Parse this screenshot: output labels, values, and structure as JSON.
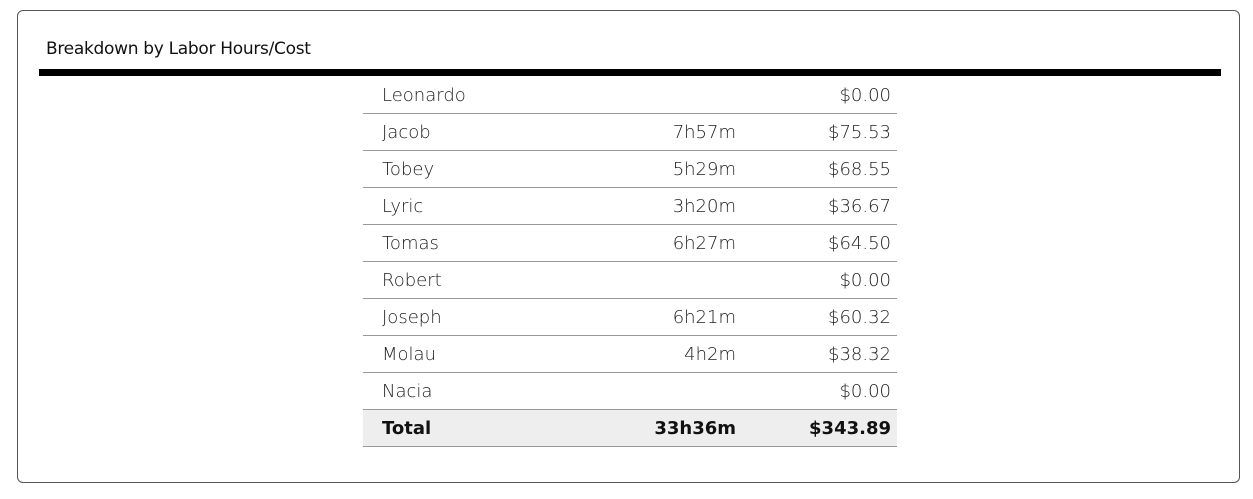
{
  "header": {
    "title": "Breakdown by Labor Hours/Cost"
  },
  "table": {
    "rows": [
      {
        "name": "Leonardo",
        "cost": "$0.00"
      },
      {
        "name": "Jacob",
        "hours": "7h57m",
        "cost": "$75.53"
      },
      {
        "name": "Tobey",
        "hours": "5h29m",
        "cost": "$68.55"
      },
      {
        "name": "Lyric",
        "hours": "3h20m",
        "cost": "$36.67"
      },
      {
        "name": "Tomas",
        "hours": "6h27m",
        "cost": "$64.50"
      },
      {
        "name": "Robert",
        "cost": "$0.00"
      },
      {
        "name": "Joseph",
        "hours": "6h21m",
        "cost": "$60.32"
      },
      {
        "name": "Molau",
        "hours": "4h2m",
        "cost": "$38.32"
      },
      {
        "name": "Nacia",
        "cost": "$0.00"
      }
    ],
    "total": {
      "name": "Total",
      "hours": "33h36m",
      "cost": "$343.89"
    }
  }
}
